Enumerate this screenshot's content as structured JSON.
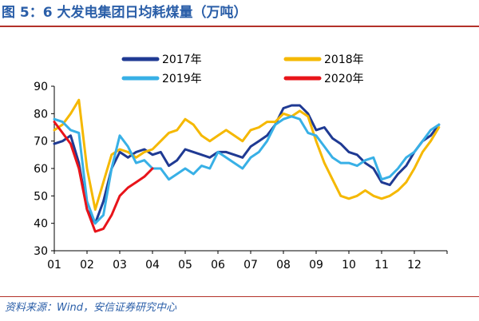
{
  "page": {
    "title": "图 5：6 大发电集团日均耗煤量（万吨）",
    "source": "资料来源：Wind，安信证券研究中心"
  },
  "chart_data": {
    "type": "line",
    "title": "6 大发电集团日均耗煤量（万吨）",
    "xlabel": "",
    "ylabel": "",
    "ylim": [
      30,
      90
    ],
    "yticks": [
      30,
      40,
      50,
      60,
      70,
      80,
      90
    ],
    "xlim": [
      1,
      13
    ],
    "xtick_labels": [
      "01",
      "02",
      "03",
      "04",
      "05",
      "06",
      "07",
      "08",
      "09",
      "10",
      "11",
      "12"
    ],
    "legend_placement": "top",
    "x": [
      1,
      1.25,
      1.5,
      1.75,
      2,
      2.25,
      2.5,
      2.75,
      3,
      3.25,
      3.5,
      3.75,
      4,
      4.25,
      4.5,
      4.75,
      5,
      5.25,
      5.5,
      5.75,
      6,
      6.25,
      6.5,
      6.75,
      7,
      7.25,
      7.5,
      7.75,
      8,
      8.25,
      8.5,
      8.75,
      9,
      9.25,
      9.5,
      9.75,
      10,
      10.25,
      10.5,
      10.75,
      11,
      11.25,
      11.5,
      11.75,
      12,
      12.25,
      12.5,
      12.75
    ],
    "series": [
      {
        "name": "2017年",
        "color": "#1f3a93",
        "values": [
          69,
          70,
          72,
          62,
          45,
          40,
          48,
          60,
          66,
          64,
          66,
          67,
          65,
          66,
          61,
          63,
          67,
          66,
          65,
          64,
          66,
          66,
          65,
          64,
          68,
          70,
          72,
          76,
          82,
          83,
          83,
          80,
          74,
          75,
          71,
          69,
          66,
          65,
          62,
          60,
          55,
          54,
          58,
          61,
          66,
          70,
          72,
          76
        ]
      },
      {
        "name": "2018年",
        "color": "#f5b800",
        "values": [
          74,
          76,
          80,
          85,
          60,
          45,
          55,
          65,
          67,
          66,
          64,
          66,
          67,
          70,
          73,
          74,
          78,
          76,
          72,
          70,
          72,
          74,
          72,
          70,
          74,
          75,
          77,
          77,
          80,
          79,
          81,
          79,
          70,
          62,
          56,
          50,
          49,
          50,
          52,
          50,
          49,
          50,
          52,
          55,
          60,
          66,
          70,
          75
        ]
      },
      {
        "name": "2019年",
        "color": "#38b0e6",
        "values": [
          78,
          77,
          74,
          73,
          48,
          40,
          43,
          60,
          72,
          68,
          62,
          63,
          60,
          60,
          56,
          58,
          60,
          58,
          61,
          60,
          66,
          64,
          62,
          60,
          64,
          66,
          70,
          76,
          78,
          79,
          78,
          73,
          72,
          68,
          64,
          62,
          62,
          61,
          63,
          64,
          56,
          57,
          60,
          64,
          66,
          70,
          74,
          76
        ]
      },
      {
        "name": "2020年",
        "color": "#e8141a",
        "values": [
          77,
          73,
          69,
          60,
          45,
          37,
          38,
          43,
          50,
          53,
          55,
          57,
          60,
          null,
          null,
          null,
          null,
          null,
          null,
          null,
          null,
          null,
          null,
          null,
          null,
          null,
          null,
          null,
          null,
          null,
          null,
          null,
          null,
          null,
          null,
          null,
          null,
          null,
          null,
          null,
          null,
          null,
          null,
          null,
          null,
          null,
          null,
          null
        ]
      }
    ]
  }
}
